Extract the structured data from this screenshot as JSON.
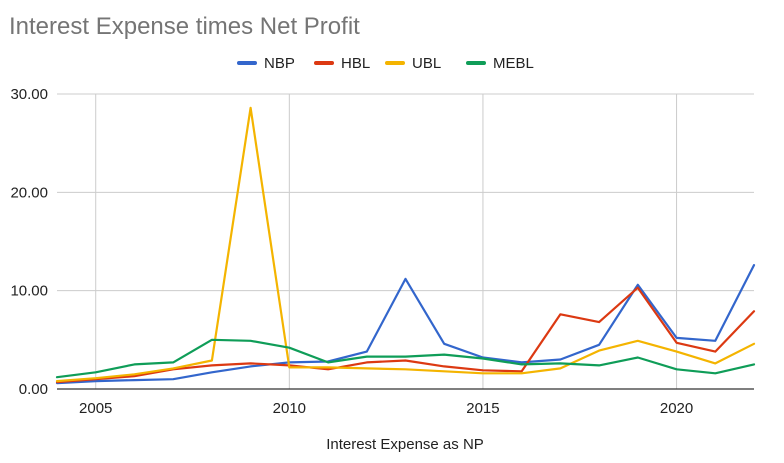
{
  "chart_data": {
    "type": "line",
    "title": "Interest Expense times Net Profit",
    "xlabel": "Interest Expense as NP",
    "ylabel": "",
    "xlim": [
      2004,
      2022
    ],
    "ylim": [
      0,
      30
    ],
    "x_ticks": [
      2005,
      2010,
      2015,
      2020
    ],
    "x_tick_labels": [
      "2005",
      "2010",
      "2015",
      "2020"
    ],
    "y_ticks": [
      0,
      10,
      20,
      30
    ],
    "y_tick_labels": [
      "0.00",
      "10.00",
      "20.00",
      "30.00"
    ],
    "grid": true,
    "legend_position": "top",
    "x": [
      2004,
      2005,
      2006,
      2007,
      2008,
      2009,
      2010,
      2011,
      2012,
      2013,
      2014,
      2015,
      2016,
      2017,
      2018,
      2019,
      2020,
      2021,
      2022
    ],
    "series": [
      {
        "name": "NBP",
        "color": "#3366cc",
        "values": [
          0.6,
          0.8,
          0.9,
          1.0,
          1.7,
          2.3,
          2.7,
          2.8,
          3.8,
          11.2,
          4.6,
          3.2,
          2.7,
          3.0,
          4.5,
          10.6,
          5.2,
          4.9,
          12.6
        ]
      },
      {
        "name": "HBL",
        "color": "#dc3912",
        "values": [
          0.7,
          1.0,
          1.3,
          2.0,
          2.4,
          2.6,
          2.4,
          2.0,
          2.7,
          2.9,
          2.3,
          1.9,
          1.8,
          7.6,
          6.8,
          10.3,
          4.7,
          3.8,
          7.9
        ]
      },
      {
        "name": "UBL",
        "color": "#f4b400",
        "values": [
          0.8,
          1.1,
          1.5,
          2.1,
          2.9,
          28.6,
          2.2,
          2.2,
          2.1,
          2.0,
          1.8,
          1.6,
          1.6,
          2.1,
          3.9,
          4.9,
          3.8,
          2.6,
          4.6
        ]
      },
      {
        "name": "MEBL",
        "color": "#0f9d58",
        "values": [
          1.2,
          1.7,
          2.5,
          2.7,
          5.0,
          4.9,
          4.2,
          2.7,
          3.3,
          3.3,
          3.5,
          3.1,
          2.5,
          2.6,
          2.4,
          3.2,
          2.0,
          1.6,
          2.5
        ]
      }
    ]
  }
}
